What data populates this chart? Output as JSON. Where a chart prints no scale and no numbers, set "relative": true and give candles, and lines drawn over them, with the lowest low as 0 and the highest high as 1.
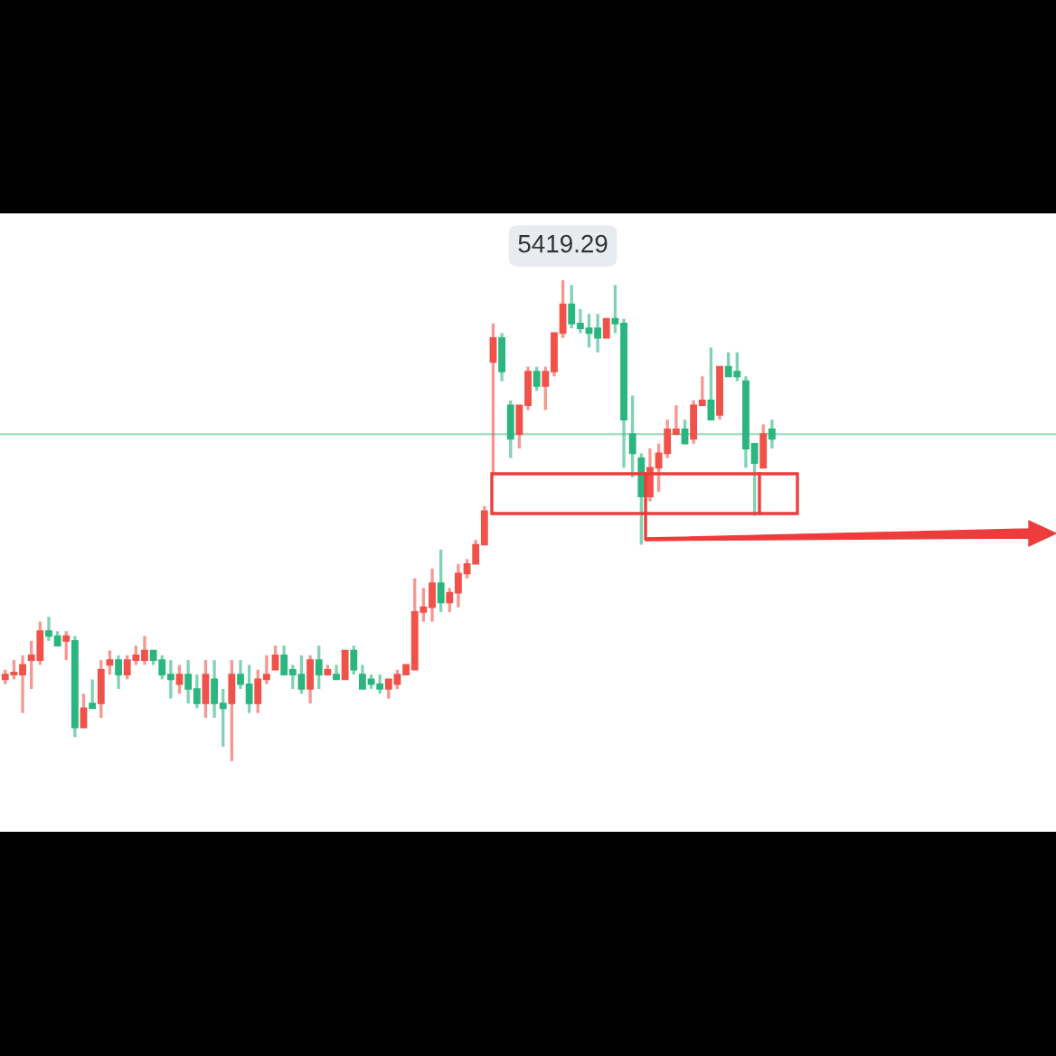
{
  "chart_data": {
    "type": "candlestick",
    "relative": true,
    "grid": false,
    "categories": [
      null,
      null,
      null,
      null,
      null,
      null,
      null,
      null,
      null,
      null,
      null,
      null,
      null,
      null,
      null,
      null,
      null,
      null,
      null,
      null,
      null,
      null,
      null,
      null,
      null,
      null,
      null,
      null,
      null,
      null,
      null,
      null,
      null,
      null,
      null,
      null,
      null,
      null,
      null,
      null,
      null,
      null,
      null,
      null,
      null,
      null,
      null,
      null,
      null,
      null,
      null,
      null,
      null,
      null,
      null,
      null,
      null,
      null,
      null,
      null,
      null,
      null,
      null,
      null,
      null,
      null,
      null,
      null,
      null,
      null,
      null,
      null,
      null,
      null,
      null,
      null,
      null,
      null,
      null,
      null,
      null,
      null,
      null,
      null,
      null,
      null,
      null,
      null,
      null
    ],
    "ohlc": [
      [
        0.17,
        0.19,
        0.16,
        0.18
      ],
      [
        0.18,
        0.21,
        0.17,
        0.18
      ],
      [
        0.18,
        0.22,
        0.1,
        0.2
      ],
      [
        0.21,
        0.25,
        0.15,
        0.22
      ],
      [
        0.21,
        0.29,
        0.2,
        0.27
      ],
      [
        0.27,
        0.3,
        0.25,
        0.26
      ],
      [
        0.26,
        0.27,
        0.24,
        0.24
      ],
      [
        0.25,
        0.27,
        0.21,
        0.26
      ],
      [
        0.25,
        0.26,
        0.05,
        0.07
      ],
      [
        0.07,
        0.14,
        0.07,
        0.11
      ],
      [
        0.12,
        0.17,
        0.11,
        0.11
      ],
      [
        0.12,
        0.21,
        0.09,
        0.19
      ],
      [
        0.2,
        0.23,
        0.18,
        0.21
      ],
      [
        0.21,
        0.22,
        0.15,
        0.18
      ],
      [
        0.18,
        0.22,
        0.17,
        0.21
      ],
      [
        0.21,
        0.24,
        0.2,
        0.22
      ],
      [
        0.21,
        0.26,
        0.2,
        0.23
      ],
      [
        0.23,
        0.23,
        0.2,
        0.21
      ],
      [
        0.21,
        0.22,
        0.17,
        0.18
      ],
      [
        0.18,
        0.21,
        0.13,
        0.17
      ],
      [
        0.16,
        0.2,
        0.14,
        0.18
      ],
      [
        0.18,
        0.21,
        0.12,
        0.15
      ],
      [
        0.15,
        0.18,
        0.11,
        0.12
      ],
      [
        0.12,
        0.21,
        0.09,
        0.18
      ],
      [
        0.17,
        0.21,
        0.09,
        0.12
      ],
      [
        0.12,
        0.15,
        0.03,
        0.11
      ],
      [
        0.12,
        0.21,
        0,
        0.18
      ],
      [
        0.18,
        0.21,
        0.15,
        0.16
      ],
      [
        0.16,
        0.2,
        0.1,
        0.12
      ],
      [
        0.12,
        0.19,
        0.1,
        0.17
      ],
      [
        0.17,
        0.22,
        0.16,
        0.18
      ],
      [
        0.19,
        0.24,
        0.19,
        0.22
      ],
      [
        0.22,
        0.24,
        0.18,
        0.18
      ],
      [
        0.19,
        0.2,
        0.15,
        0.18
      ],
      [
        0.18,
        0.22,
        0.14,
        0.15
      ],
      [
        0.15,
        0.22,
        0.12,
        0.21
      ],
      [
        0.21,
        0.24,
        0.15,
        0.18
      ],
      [
        0.18,
        0.2,
        0.18,
        0.19
      ],
      [
        0.18,
        0.2,
        0.17,
        0.17
      ],
      [
        0.17,
        0.23,
        0.17,
        0.23
      ],
      [
        0.23,
        0.24,
        0.18,
        0.19
      ],
      [
        0.18,
        0.2,
        0.15,
        0.15
      ],
      [
        0.17,
        0.18,
        0.15,
        0.16
      ],
      [
        0.16,
        0.18,
        0.14,
        0.15
      ],
      [
        0.15,
        0.17,
        0.13,
        0.17
      ],
      [
        0.16,
        0.19,
        0.15,
        0.18
      ],
      [
        0.18,
        0.2,
        0.18,
        0.2
      ],
      [
        0.19,
        0.38,
        0.19,
        0.31
      ],
      [
        0.31,
        0.36,
        0.29,
        0.32
      ],
      [
        0.32,
        0.4,
        0.29,
        0.37
      ],
      [
        0.37,
        0.44,
        0.31,
        0.33
      ],
      [
        0.33,
        0.36,
        0.31,
        0.35
      ],
      [
        0.35,
        0.41,
        0.32,
        0.39
      ],
      [
        0.39,
        0.42,
        0.38,
        0.41
      ],
      [
        0.41,
        0.46,
        0.41,
        0.45
      ],
      [
        0.45,
        0.53,
        0.45,
        0.52
      ],
      [
        0.83,
        0.91,
        0.6,
        0.88
      ],
      [
        0.88,
        0.89,
        0.79,
        0.81
      ],
      [
        0.74,
        0.75,
        0.63,
        0.67
      ],
      [
        0.68,
        0.74,
        0.65,
        0.74
      ],
      [
        0.74,
        0.82,
        0.73,
        0.81
      ],
      [
        0.81,
        0.82,
        0.77,
        0.78
      ],
      [
        0.78,
        0.82,
        0.73,
        0.81
      ],
      [
        0.81,
        0.89,
        0.8,
        0.89
      ],
      [
        0.89,
        1.0,
        0.88,
        0.95
      ],
      [
        0.95,
        0.99,
        0.9,
        0.91
      ],
      [
        0.91,
        0.94,
        0.89,
        0.9
      ],
      [
        0.9,
        0.93,
        0.86,
        0.89
      ],
      [
        0.9,
        0.93,
        0.85,
        0.88
      ],
      [
        0.88,
        0.92,
        0.88,
        0.92
      ],
      [
        0.92,
        0.99,
        0.89,
        0.91
      ],
      [
        0.91,
        0.92,
        0.61,
        0.71
      ],
      [
        0.68,
        0.76,
        0.59,
        0.64
      ],
      [
        0.63,
        0.64,
        0.45,
        0.55
      ],
      [
        0.55,
        0.65,
        0.54,
        0.61
      ],
      [
        0.61,
        0.66,
        0.56,
        0.64
      ],
      [
        0.64,
        0.71,
        0.63,
        0.69
      ],
      [
        0.68,
        0.74,
        0.68,
        0.69
      ],
      [
        0.69,
        0.71,
        0.66,
        0.66
      ],
      [
        0.67,
        0.75,
        0.66,
        0.74
      ],
      [
        0.74,
        0.8,
        0.74,
        0.75
      ],
      [
        0.75,
        0.86,
        0.71,
        0.71
      ],
      [
        0.72,
        0.82,
        0.71,
        0.82
      ],
      [
        0.82,
        0.85,
        0.8,
        0.8
      ],
      [
        0.81,
        0.85,
        0.79,
        0.8
      ],
      [
        0.79,
        0.8,
        0.61,
        0.65
      ],
      [
        0.66,
        0.66,
        0.51,
        0.62
      ],
      [
        0.61,
        0.7,
        0.61,
        0.68
      ],
      [
        0.69,
        0.71,
        0.65,
        0.67
      ]
    ],
    "colors": [
      "#f0524a",
      "#f0524a",
      "#f0524a",
      "#f0524a",
      "#f0524a",
      "#2bb57f",
      "#2bb57f",
      "#f0524a",
      "#2bb57f",
      "#f0524a",
      "#2bb57f",
      "#f0524a",
      "#f0524a",
      "#2bb57f",
      "#f0524a",
      "#f0524a",
      "#f0524a",
      "#2bb57f",
      "#2bb57f",
      "#2bb57f",
      "#f0524a",
      "#2bb57f",
      "#2bb57f",
      "#f0524a",
      "#2bb57f",
      "#2bb57f",
      "#f0524a",
      "#2bb57f",
      "#2bb57f",
      "#f0524a",
      "#f0524a",
      "#f0524a",
      "#2bb57f",
      "#2bb57f",
      "#2bb57f",
      "#f0524a",
      "#2bb57f",
      "#f0524a",
      "#2bb57f",
      "#f0524a",
      "#2bb57f",
      "#2bb57f",
      "#2bb57f",
      "#2bb57f",
      "#f0524a",
      "#f0524a",
      "#f0524a",
      "#f0524a",
      "#f0524a",
      "#f0524a",
      "#2bb57f",
      "#f0524a",
      "#f0524a",
      "#f0524a",
      "#f0524a",
      "#f0524a",
      "#f0524a",
      "#2bb57f",
      "#2bb57f",
      "#f0524a",
      "#f0524a",
      "#2bb57f",
      "#f0524a",
      "#f0524a",
      "#f0524a",
      "#2bb57f",
      "#2bb57f",
      "#2bb57f",
      "#2bb57f",
      "#f0524a",
      "#2bb57f",
      "#2bb57f",
      "#2bb57f",
      "#2bb57f",
      "#f0524a",
      "#f0524a",
      "#f0524a",
      "#f0524a",
      "#2bb57f",
      "#f0524a",
      "#f0524a",
      "#2bb57f",
      "#f0524a",
      "#2bb57f",
      "#2bb57f",
      "#2bb57f",
      "#2bb57f",
      "#f0524a",
      "#2bb57f"
    ],
    "ref_lines": [
      {
        "axis": "y",
        "value": 0.68,
        "color": "#a8dfc6"
      }
    ],
    "annotations": [
      {
        "text": "5419.29",
        "y": 1.0
      }
    ]
  }
}
